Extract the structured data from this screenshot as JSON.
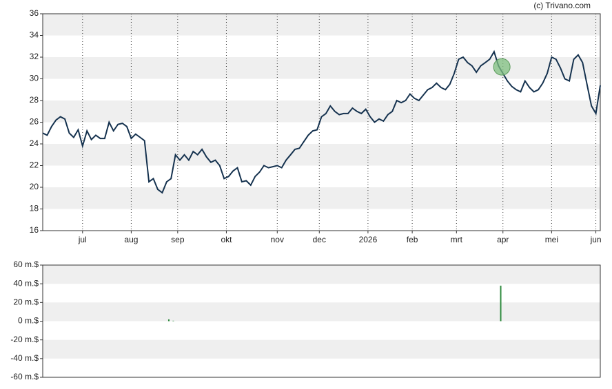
{
  "chart_data": [
    {
      "type": "line",
      "watermark": "(c) Trivano.com",
      "x": [
        0,
        2,
        4,
        6,
        8,
        10,
        12,
        14,
        16,
        18,
        20,
        22,
        24,
        26,
        28,
        30,
        32,
        34,
        36,
        38,
        40,
        42,
        44,
        46,
        48,
        50,
        52,
        54,
        56,
        58,
        60,
        62,
        64,
        66,
        68,
        70,
        72,
        74,
        76,
        78,
        80,
        82,
        84,
        86,
        88,
        90,
        92,
        94,
        96,
        98,
        100,
        102,
        104,
        106,
        108,
        110,
        112,
        114,
        116,
        118,
        120,
        122,
        124,
        126,
        128,
        130,
        132,
        134,
        136,
        138,
        140,
        142,
        144,
        146,
        148,
        150,
        152,
        154,
        156,
        158,
        160,
        162,
        164,
        166,
        168,
        170,
        172,
        174,
        176,
        178,
        180,
        182,
        184,
        186,
        188,
        190,
        192,
        194,
        196,
        198,
        200,
        202,
        204,
        206,
        208,
        210,
        212,
        214,
        216,
        218,
        220,
        222,
        224,
        226,
        228,
        230,
        232,
        234,
        236,
        238,
        240,
        242,
        244,
        246,
        248,
        250,
        252
      ],
      "series": [
        {
          "color": "#15324f",
          "values": [
            25.0,
            24.8,
            25.6,
            26.2,
            26.5,
            26.3,
            25.0,
            24.6,
            25.3,
            23.8,
            25.2,
            24.4,
            24.8,
            24.5,
            24.5,
            26.0,
            25.2,
            25.8,
            25.9,
            25.6,
            24.5,
            24.9,
            24.6,
            24.3,
            20.5,
            20.8,
            19.8,
            19.5,
            20.5,
            20.8,
            23.0,
            22.5,
            23.0,
            22.5,
            23.3,
            23.0,
            23.5,
            22.8,
            22.3,
            22.5,
            22.0,
            20.8,
            21.0,
            21.5,
            21.8,
            20.5,
            20.6,
            20.2,
            21.0,
            21.4,
            22.0,
            21.8,
            21.9,
            22.0,
            21.8,
            22.5,
            23.0,
            23.5,
            23.6,
            24.2,
            24.8,
            25.2,
            25.3,
            26.5,
            26.8,
            27.5,
            27.0,
            26.7,
            26.8,
            26.8,
            27.3,
            27.0,
            26.8,
            27.2,
            26.5,
            26.0,
            26.3,
            26.1,
            26.7,
            27.0,
            28.0,
            27.8,
            28.0,
            28.6,
            28.2,
            28.0,
            28.5,
            29.0,
            29.2,
            29.6,
            29.2,
            29.0,
            29.5,
            30.5,
            31.8,
            32.0,
            31.5,
            31.2,
            30.6,
            31.2,
            31.5,
            31.8,
            32.5,
            31.2,
            30.5,
            29.8,
            29.3,
            29.0,
            28.8,
            29.8,
            29.2,
            28.8,
            29.0,
            29.6,
            30.5,
            32.0,
            31.8,
            31.0,
            30.0,
            29.8,
            31.8,
            32.2,
            31.5,
            29.5,
            27.5,
            26.8,
            29.4
          ]
        }
      ],
      "markers": [
        {
          "x": 207.5,
          "y": 31.1,
          "color": "#7fbf7f"
        }
      ],
      "xlim": [
        0,
        252
      ],
      "ylim": [
        16,
        36
      ],
      "xticks": [
        {
          "value": 18,
          "label": "jul"
        },
        {
          "value": 40,
          "label": "aug"
        },
        {
          "value": 61,
          "label": "sep"
        },
        {
          "value": 83,
          "label": "okt"
        },
        {
          "value": 106,
          "label": "nov"
        },
        {
          "value": 125,
          "label": "dec"
        },
        {
          "value": 147,
          "label": "2026"
        },
        {
          "value": 167,
          "label": "feb"
        },
        {
          "value": 187,
          "label": "mrt"
        },
        {
          "value": 208,
          "label": "apr"
        },
        {
          "value": 230,
          "label": "mei"
        },
        {
          "value": 250,
          "label": "jun"
        }
      ],
      "yticks": [
        16,
        18,
        20,
        22,
        24,
        26,
        28,
        30,
        32,
        34,
        36
      ]
    },
    {
      "type": "bar",
      "x": [
        57,
        59,
        207
      ],
      "values": [
        2,
        0.5,
        38
      ],
      "color": "#2e8b3e",
      "xlim": [
        0,
        252
      ],
      "ylim": [
        -60,
        60
      ],
      "yticks": [
        {
          "value": -60,
          "label": "-60 m.$"
        },
        {
          "value": -40,
          "label": "-40 m.$"
        },
        {
          "value": -20,
          "label": "-20 m.$"
        },
        {
          "value": 0,
          "label": "0 m.$"
        },
        {
          "value": 20,
          "label": "20 m.$"
        },
        {
          "value": 40,
          "label": "40 m.$"
        },
        {
          "value": 60,
          "label": "60 m.$"
        }
      ]
    }
  ]
}
